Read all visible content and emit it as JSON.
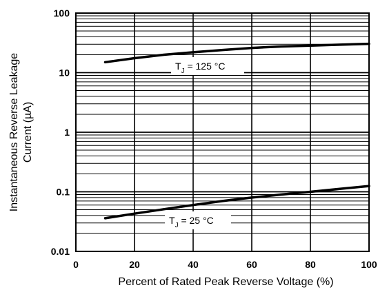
{
  "chart_data": {
    "type": "line",
    "xlabel": "Percent of Rated Peak Reverse Voltage (%)",
    "ylabel_line1": "Instantaneous Reverse Leakage",
    "ylabel_line2": "Current (µA)",
    "xlim": [
      0,
      100
    ],
    "ylim": [
      0.01,
      100
    ],
    "yscale": "log",
    "grid": true,
    "x_ticks": [
      0,
      20,
      40,
      60,
      80,
      100
    ],
    "x_tick_labels": [
      "0",
      "20",
      "40",
      "60",
      "80",
      "100"
    ],
    "y_ticks": [
      0.01,
      0.1,
      1,
      10,
      100
    ],
    "y_tick_labels": [
      "0.01",
      "0.1",
      "1",
      "10",
      "100"
    ],
    "series": [
      {
        "label_main": "T",
        "label_sub": "J",
        "label_rest": " = 125 °C",
        "x": [
          10,
          20,
          30,
          40,
          50,
          60,
          70,
          80,
          90,
          100
        ],
        "y": [
          15,
          17.5,
          20,
          22,
          24,
          26,
          27.5,
          28.5,
          29.5,
          30.5
        ]
      },
      {
        "label_main": "T",
        "label_sub": "J",
        "label_rest": " = 25 °C",
        "x": [
          10,
          20,
          30,
          40,
          50,
          60,
          70,
          80,
          90,
          100
        ],
        "y": [
          0.036,
          0.043,
          0.051,
          0.06,
          0.07,
          0.08,
          0.09,
          0.1,
          0.112,
          0.125
        ]
      }
    ]
  }
}
